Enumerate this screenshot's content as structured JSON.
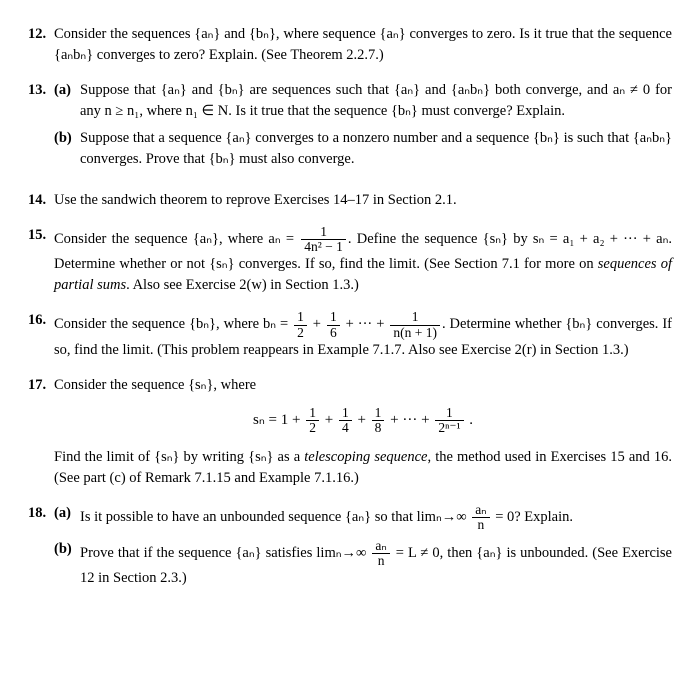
{
  "p12": {
    "num": "12.",
    "text": "Consider the sequences {aₙ} and {bₙ}, where sequence {aₙ} converges to zero. Is it true that the sequence {aₙbₙ} converges to zero? Explain. (See Theorem 2.2.7.)"
  },
  "p13": {
    "num": "13.",
    "a_label": "(a)",
    "a_text": "Suppose that {aₙ} and {bₙ} are sequences such that {aₙ} and {aₙbₙ} both converge, and aₙ ≠ 0 for any n ≥ n₁, where n₁ ∈ N. Is it true that the sequence {bₙ} must converge? Explain.",
    "b_label": "(b)",
    "b_text": "Suppose that a sequence {aₙ} converges to a nonzero number and a sequence {bₙ} is such that {aₙbₙ} converges. Prove that {bₙ} must also converge."
  },
  "p14": {
    "num": "14.",
    "text": "Use the sandwich theorem to reprove Exercises 14–17 in Section 2.1."
  },
  "p15": {
    "num": "15.",
    "pre": "Consider the sequence {aₙ}, where aₙ = ",
    "frac_num": "1",
    "frac_den": "4n² − 1",
    "mid": ". Define the sequence {sₙ} by sₙ = a₁ + a₂ + ··· + aₙ. Determine whether or not {sₙ} converges. If so, find the limit. (See Section 7.1 for more on ",
    "ital": "sequences of partial sums",
    "post": ". Also see Exercise 2(w) in Section 1.3.)"
  },
  "p16": {
    "num": "16.",
    "pre": "Consider the sequence {bₙ}, where bₙ = ",
    "f1n": "1",
    "f1d": "2",
    "plus1": " + ",
    "f2n": "1",
    "f2d": "6",
    "plus2": " + ··· + ",
    "f3n": "1",
    "f3d": "n(n + 1)",
    "post": ". Determine whether {bₙ} converges. If so, find the limit. (This problem reappears in Example 7.1.7. Also see Exercise 2(r) in Section 1.3.)"
  },
  "p17": {
    "num": "17.",
    "intro": "Consider the sequence {sₙ}, where",
    "formula_pre": "sₙ = 1 + ",
    "t1n": "1",
    "t1d": "2",
    "pl1": " + ",
    "t2n": "1",
    "t2d": "4",
    "pl2": " + ",
    "t3n": "1",
    "t3d": "8",
    "pl3": " + ··· + ",
    "t4n": "1",
    "t4d": "2ⁿ⁻¹",
    "formula_post": " .",
    "after_pre": "Find the limit of {sₙ} by writing {sₙ} as a ",
    "ital": "telescoping sequence",
    "after_post": ", the method used in Exercises 15 and 16. (See part (c) of Remark 7.1.15 and Example 7.1.16.)"
  },
  "p18": {
    "num": "18.",
    "a_label": "(a)",
    "a_pre": "Is it possible to have an unbounded sequence {aₙ} so that limₙ→∞ ",
    "a_fn": "aₙ",
    "a_fd": "n",
    "a_post": " = 0? Explain.",
    "b_label": "(b)",
    "b_pre": "Prove that if the sequence {aₙ} satisfies limₙ→∞ ",
    "b_fn": "aₙ",
    "b_fd": "n",
    "b_post": " = L ≠ 0, then {aₙ} is unbounded. (See Exercise 12 in Section 2.3.)"
  }
}
